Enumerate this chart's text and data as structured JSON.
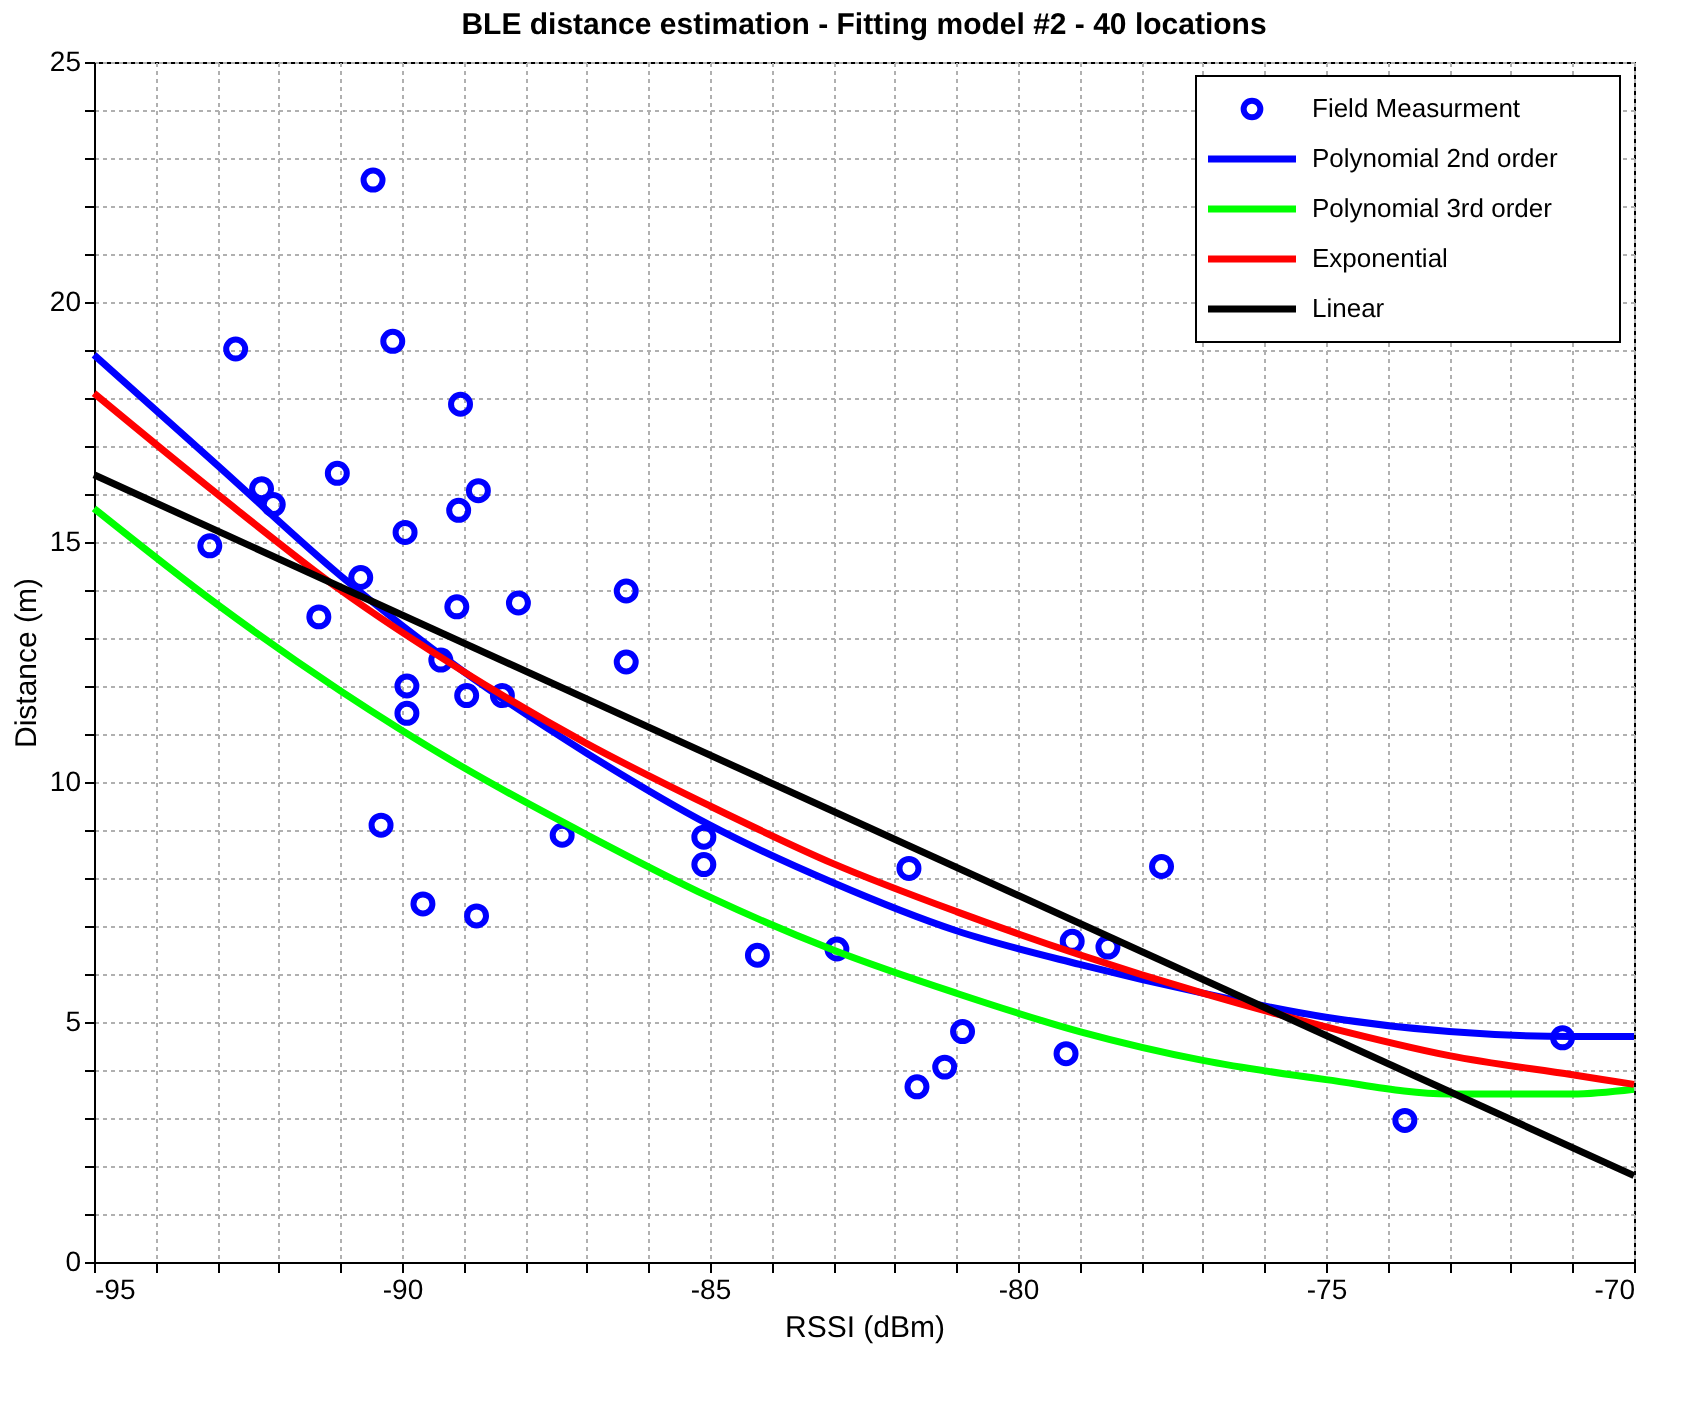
{
  "chart_data": {
    "type": "scatter",
    "title": "BLE distance estimation - Fitting model #2 - 40 locations",
    "xlabel": "RSSI (dBm)",
    "ylabel": "Distance (m)",
    "xlim": [
      -95,
      -70
    ],
    "ylim": [
      0,
      25
    ],
    "xticks": [
      -95,
      {
        "value": -94,
        "label": null
      },
      {
        "value": -93,
        "label": null
      },
      {
        "value": -92,
        "label": null
      },
      {
        "value": -91,
        "label": null
      },
      -90,
      {
        "value": -89,
        "label": null
      },
      {
        "value": -88,
        "label": null
      },
      {
        "value": -87,
        "label": null
      },
      {
        "value": -86,
        "label": null
      },
      -85,
      {
        "value": -84,
        "label": null
      },
      {
        "value": -83,
        "label": null
      },
      {
        "value": -82,
        "label": null
      },
      {
        "value": -81,
        "label": null
      },
      -80,
      {
        "value": -79,
        "label": null
      },
      {
        "value": -78,
        "label": null
      },
      {
        "value": -77,
        "label": null
      },
      {
        "value": -76,
        "label": null
      },
      -75,
      {
        "value": -74,
        "label": null
      },
      {
        "value": -73,
        "label": null
      },
      {
        "value": -72,
        "label": null
      },
      {
        "value": -71,
        "label": null
      },
      -70
    ],
    "yticks": [
      0,
      {
        "value": 1,
        "label": null
      },
      {
        "value": 2,
        "label": null
      },
      {
        "value": 3,
        "label": null
      },
      {
        "value": 4,
        "label": null
      },
      5,
      {
        "value": 6,
        "label": null
      },
      {
        "value": 7,
        "label": null
      },
      {
        "value": 8,
        "label": null
      },
      {
        "value": 9,
        "label": null
      },
      10,
      {
        "value": 11,
        "label": null
      },
      {
        "value": 12,
        "label": null
      },
      {
        "value": 13,
        "label": null
      },
      {
        "value": 14,
        "label": null
      },
      15,
      {
        "value": 16,
        "label": null
      },
      {
        "value": 17,
        "label": null
      },
      {
        "value": 18,
        "label": null
      },
      {
        "value": 19,
        "label": null
      },
      20,
      {
        "value": 21,
        "label": null
      },
      {
        "value": 22,
        "label": null
      },
      {
        "value": 23,
        "label": null
      },
      {
        "value": 24,
        "label": null
      },
      25
    ],
    "grid": true,
    "legend": "top right",
    "series": [
      {
        "name": "Field Measurment",
        "marker": "circle",
        "color": "#0000ff",
        "x": [
          -93.12,
          -92.7,
          -92.28,
          -92.09,
          -91.35,
          -91.05,
          -90.67,
          -90.47,
          -90.34,
          -90.15,
          -89.95,
          -89.92,
          -89.92,
          -89.66,
          -89.37,
          -89.11,
          -89.05,
          -89.08,
          -88.95,
          -88.79,
          -88.76,
          -88.37,
          -88.11,
          -87.4,
          -86.36,
          -86.36,
          -85.1,
          -85.1,
          -84.23,
          -82.94,
          -81.77,
          -81.64,
          -81.19,
          -80.9,
          -79.22,
          -79.12,
          -78.54,
          -77.67,
          -73.72,
          -71.16
        ],
        "values": [
          14.92,
          19.02,
          16.11,
          15.78,
          13.44,
          16.43,
          14.26,
          22.54,
          9.1,
          19.18,
          15.2,
          12.0,
          11.43,
          7.46,
          12.54,
          13.65,
          17.87,
          15.66,
          11.8,
          7.21,
          16.07,
          11.8,
          13.73,
          8.89,
          13.98,
          12.5,
          8.85,
          8.28,
          6.39,
          6.52,
          8.2,
          3.65,
          4.06,
          4.8,
          4.34,
          6.68,
          6.56,
          8.24,
          2.95,
          4.67
        ]
      },
      {
        "name": "Polynomial 2nd order",
        "type": "line",
        "color": "#0000ff",
        "x": [
          -95,
          -93,
          -91,
          -89,
          -87,
          -85,
          -83,
          -81,
          -79,
          -77,
          -75,
          -73,
          -71,
          -70
        ],
        "values": [
          18.9,
          16.6,
          14.3,
          12.3,
          10.6,
          9.1,
          7.9,
          6.9,
          6.2,
          5.6,
          5.1,
          4.8,
          4.7,
          4.7
        ]
      },
      {
        "name": "Polynomial 3rd order",
        "type": "line",
        "color": "#00ff00",
        "x": [
          -95,
          -93,
          -91,
          -89,
          -87,
          -85,
          -83,
          -81,
          -79,
          -77,
          -75,
          -73,
          -71,
          -70
        ],
        "values": [
          15.7,
          13.7,
          11.9,
          10.3,
          8.9,
          7.6,
          6.5,
          5.6,
          4.8,
          4.2,
          3.8,
          3.5,
          3.5,
          3.6
        ]
      },
      {
        "name": "Exponential",
        "type": "line",
        "color": "#ff0000",
        "x": [
          -95,
          -93,
          -91,
          -89,
          -87,
          -85,
          -83,
          -81,
          -79,
          -77,
          -75,
          -73,
          -71,
          -70
        ],
        "values": [
          18.1,
          16.0,
          14.0,
          12.3,
          10.8,
          9.5,
          8.3,
          7.3,
          6.4,
          5.6,
          4.9,
          4.3,
          3.9,
          3.7
        ]
      },
      {
        "name": "Linear",
        "type": "line",
        "color": "#000000",
        "x": [
          -95,
          -70
        ],
        "values": [
          16.4,
          1.8
        ]
      }
    ]
  }
}
